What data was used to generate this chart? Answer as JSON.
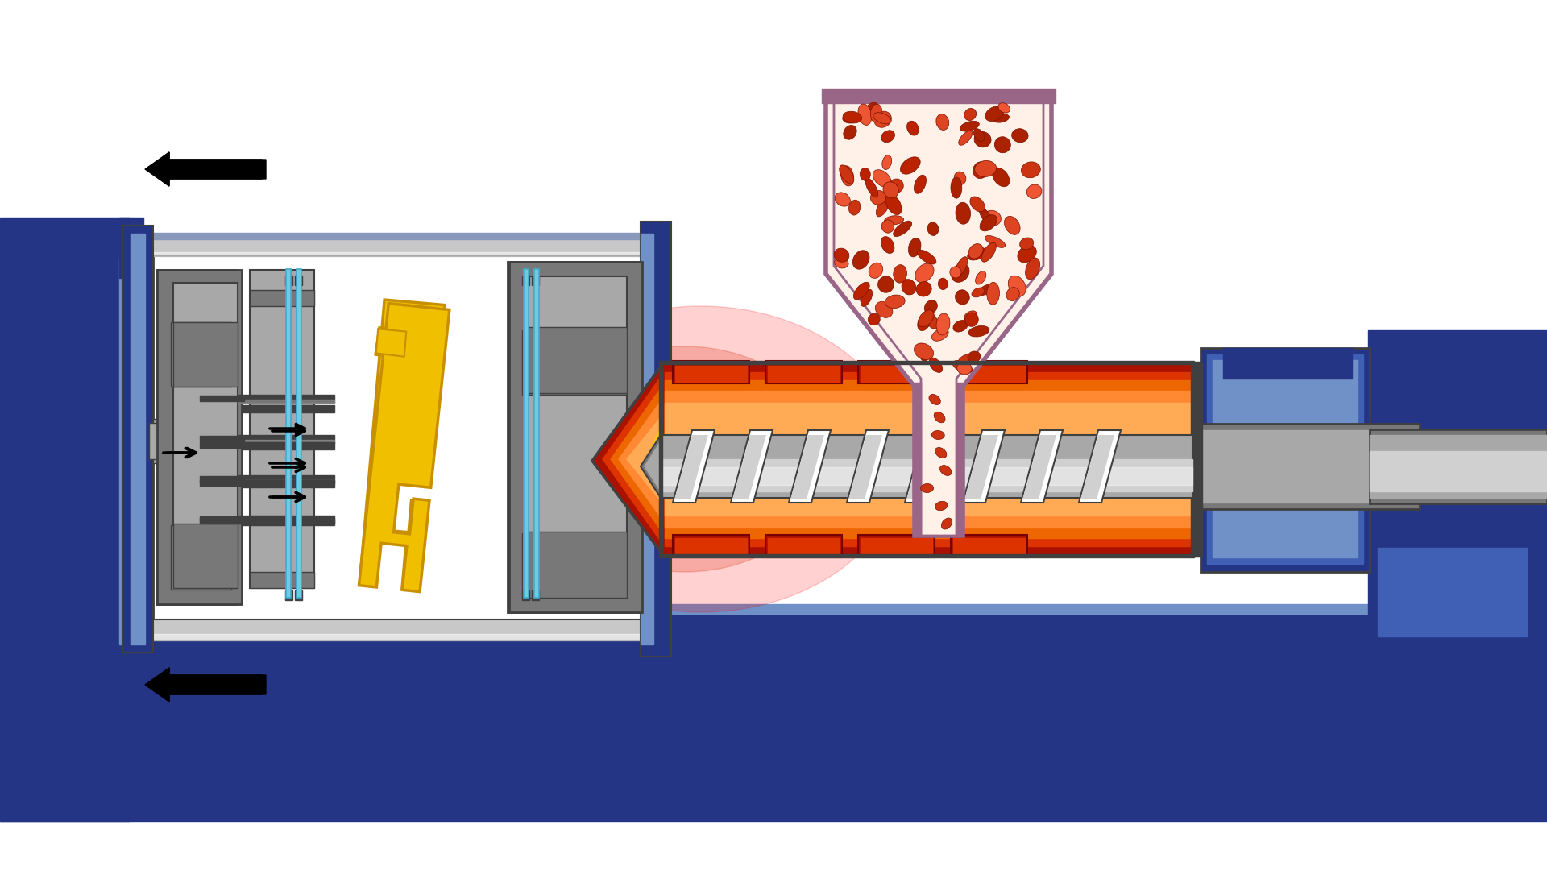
{
  "bg": "#ffffff",
  "blue_dark": "#253585",
  "blue_mid": "#4060b5",
  "blue_light": "#7090c8",
  "blue_platen": "#3050a0",
  "gray_dk": "#404040",
  "gray_md": "#787878",
  "gray_lt": "#a8a8a8",
  "gray_xlt": "#d0d0d0",
  "yellow": "#f0c000",
  "yellow_dk": "#c89000",
  "cyan": "#70ccdd",
  "red_dark": "#aa1100",
  "red_hot": "#cc2200",
  "red_med": "#dd3300",
  "orange": "#ee6600",
  "orange_lt": "#ff8833",
  "orange_xlt": "#ffaa55",
  "yellow_hot": "#ffcc00",
  "pink_h": "#996688",
  "pellet_bg": "#fff0e8",
  "pellet": "#cc3311",
  "pellet_dk": "#881100",
  "screw": "#b0b0b0",
  "black": "#000000",
  "white": "#ffffff",
  "tie_bar": "#c8c8c8",
  "tie_highlight": "#8899bb"
}
